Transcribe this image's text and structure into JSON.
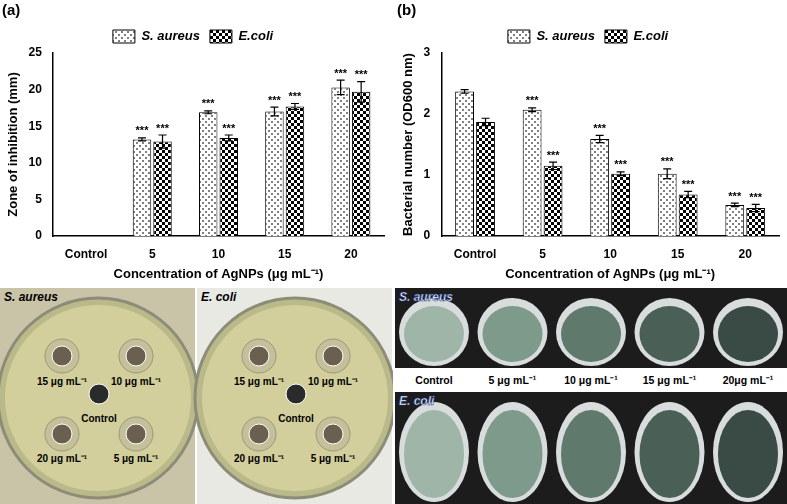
{
  "chart_data": [
    {
      "type": "bar",
      "title": "(a)",
      "categories": [
        "Control",
        "5",
        "10",
        "15",
        "20"
      ],
      "x_label": "Concentration of AgNPs (μg mL⁻¹)",
      "y_label": "Zone of inhibition (mm)",
      "ylim": [
        0,
        25
      ],
      "yticks": [
        0,
        5,
        10,
        15,
        20,
        25
      ],
      "grid": false,
      "legend": "top",
      "series": [
        {
          "name": "S. aureus",
          "color": "#808080",
          "marker": "dots",
          "values": [
            0,
            13.2,
            16.9,
            17.0,
            20.3
          ],
          "errors": [
            0,
            0.2,
            0.2,
            0.6,
            1.0
          ],
          "significance": [
            null,
            "***",
            "***",
            "***",
            "***"
          ]
        },
        {
          "name": "E.coli",
          "color": "#000000",
          "marker": "checks",
          "values": [
            0,
            12.9,
            13.4,
            17.7,
            19.7
          ],
          "errors": [
            0,
            0.9,
            0.4,
            0.4,
            1.4
          ],
          "significance": [
            null,
            "***",
            "***",
            "***",
            "***"
          ]
        }
      ]
    },
    {
      "type": "bar",
      "title": "(b)",
      "categories": [
        "Control",
        "5",
        "10",
        "15",
        "20"
      ],
      "x_label": "Concentration of AgNPs (μg mL⁻¹)",
      "y_label": "Bacterial number (OD600 nm)",
      "ylim": [
        0,
        3
      ],
      "yticks": [
        0,
        1,
        2,
        3
      ],
      "grid": false,
      "legend": "top",
      "series": [
        {
          "name": "S. aureus",
          "color": "#808080",
          "marker": "dots",
          "values": [
            2.37,
            2.07,
            1.59,
            1.02,
            0.51
          ],
          "errors": [
            0.03,
            0.03,
            0.06,
            0.08,
            0.03
          ],
          "significance": [
            null,
            "***",
            "***",
            "***",
            "***"
          ]
        },
        {
          "name": "E.coli",
          "color": "#000000",
          "marker": "checks",
          "values": [
            1.87,
            1.15,
            1.02,
            0.68,
            0.46
          ],
          "errors": [
            0.06,
            0.06,
            0.03,
            0.05,
            0.06
          ],
          "significance": [
            null,
            "***",
            "***",
            "***",
            "***"
          ]
        }
      ]
    }
  ],
  "photos": {
    "plates": [
      {
        "title": "S. aureus",
        "wells": {
          "top_left": "15 μg mL⁻¹",
          "top_right": "10 μg mL⁻¹",
          "center": "Control",
          "bottom_left": "20 μg mL⁻¹",
          "bottom_right": "5 μg mL⁻¹"
        }
      },
      {
        "title": "E. coli",
        "wells": {
          "top_left": "15 μg mL⁻¹",
          "top_right": "10 μg mL⁻¹",
          "center": "Control",
          "bottom_left": "20 μg mL⁻¹",
          "bottom_right": "5 μg mL⁻¹"
        }
      }
    ],
    "wells": {
      "rows": [
        "S. aureus",
        "E. coli"
      ],
      "labels": [
        "Control",
        "5 μg mL⁻¹",
        "10 μg mL⁻¹",
        "15 μg mL⁻¹",
        "20μg mL⁻¹"
      ]
    }
  }
}
